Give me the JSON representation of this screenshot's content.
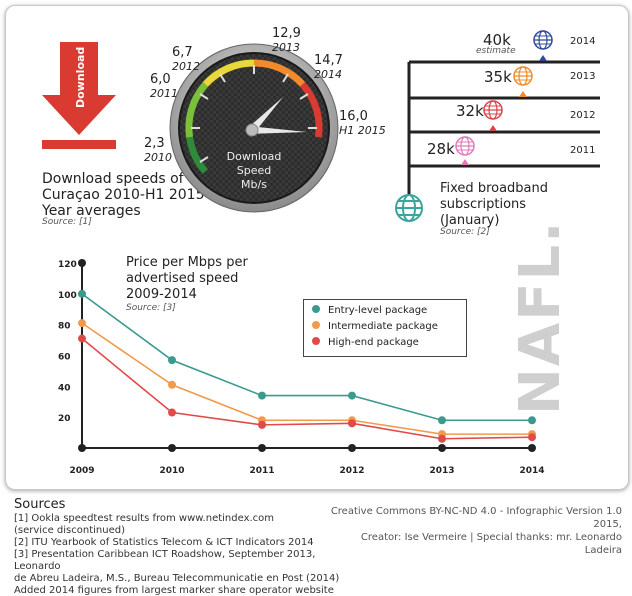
{
  "download": {
    "button_label": "Download",
    "title_lines": [
      "Download speeds of",
      "Curaçao 2010-H1 2015",
      "Year averages"
    ],
    "source": "Source: [1]",
    "gauge_lines": [
      "Download",
      "Speed",
      "Mb/s"
    ],
    "speeds": [
      {
        "value": "2,3",
        "period": "2010"
      },
      {
        "value": "6,0",
        "period": "2011"
      },
      {
        "value": "6,7",
        "period": "2012"
      },
      {
        "value": "12,9",
        "period": "2013"
      },
      {
        "value": "14,7",
        "period": "2014"
      },
      {
        "value": "16,0",
        "period": "H1 2015"
      }
    ]
  },
  "broadband": {
    "title_lines": [
      "Fixed broadband",
      "subscriptions",
      "(January)"
    ],
    "source": "Source: [2]",
    "rows": [
      {
        "value": "40k",
        "year": "2014",
        "note": "estimate",
        "color": "#2f4a9a"
      },
      {
        "value": "35k",
        "year": "2013",
        "note": "",
        "color": "#f08a2c"
      },
      {
        "value": "32k",
        "year": "2012",
        "note": "",
        "color": "#d9434a"
      },
      {
        "value": "28k",
        "year": "2011",
        "note": "",
        "color": "#e07ab8"
      }
    ],
    "globe_color": "#3aa59a"
  },
  "price_chart": {
    "title_lines": [
      "Price per Mbps per",
      "advertised speed",
      "2009-2014"
    ],
    "source": "Source: [3]",
    "watermark": "NAFL.",
    "legend": [
      "Entry-level package",
      "Intermediate package",
      "High-end package"
    ]
  },
  "chart_data": {
    "type": "line",
    "x": [
      "2009",
      "2010",
      "2011",
      "2012",
      "2013",
      "2014"
    ],
    "y_ticks": [
      20,
      40,
      60,
      80,
      100,
      120
    ],
    "ylim": [
      0,
      120
    ],
    "series": [
      {
        "name": "Entry-level package",
        "color": "#3a9a8e",
        "values": [
          100,
          57,
          34,
          34,
          18,
          18
        ]
      },
      {
        "name": "Intermediate package",
        "color": "#f29a4c",
        "values": [
          81,
          41,
          18,
          18,
          9,
          9
        ]
      },
      {
        "name": "High-end package",
        "color": "#e04a4a",
        "values": [
          71,
          23,
          15,
          16,
          6,
          7
        ]
      }
    ]
  },
  "sources": {
    "title": "Sources",
    "lines": [
      "[1] Ookla speedtest results from www.netindex.com",
      "(service discontinued)",
      "[2] ITU Yearbook of Statistics Telecom & ICT Indicators 2014",
      "[3] Presentation Caribbean ICT Roadshow, September 2013, Leonardo",
      "de Abreu Ladeira, M.S., Bureau Telecommunicatie en Post (2014)",
      "Added 2014 figures from largest marker share operator website"
    ]
  },
  "credits": {
    "line1": "Creative Commons BY-NC-ND 4.0 - Infographic Version 1.0 2015,",
    "line2": "Creator: Ise Vermeire | Special thanks: mr. Leonardo Ladeira"
  }
}
